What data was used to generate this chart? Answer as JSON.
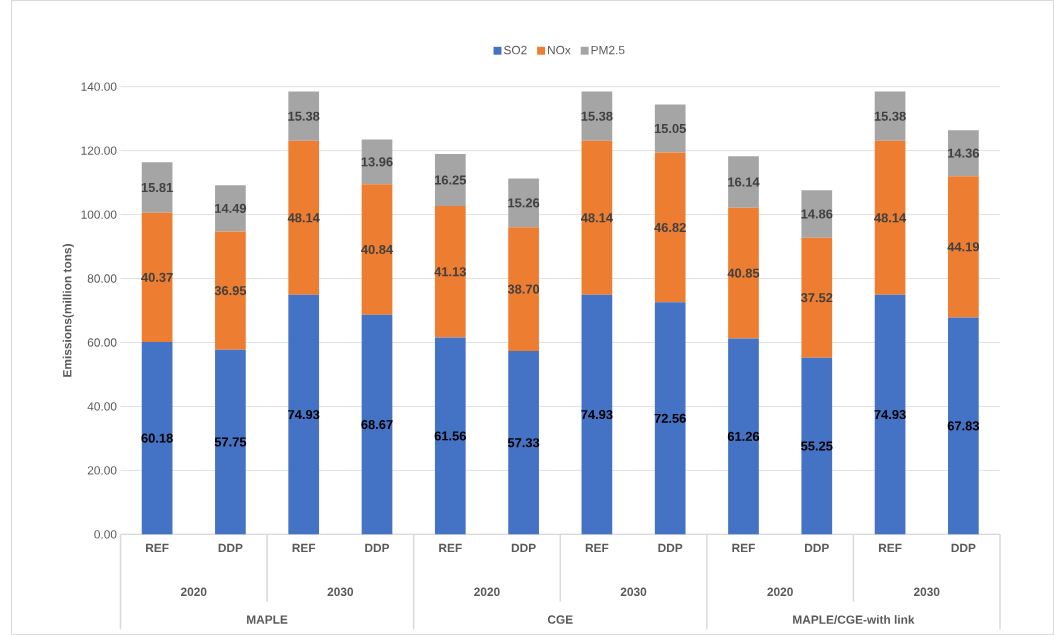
{
  "chart_data": {
    "type": "bar",
    "stacked": true,
    "ylabel": "Emissions(million tons)",
    "categories": [
      "REF",
      "DDP",
      "REF",
      "DDP",
      "REF",
      "DDP",
      "REF",
      "DDP",
      "REF",
      "DDP",
      "REF",
      "DDP"
    ],
    "series": [
      {
        "name": "SO2",
        "color": "#4472c4",
        "values": [
          60.18,
          57.75,
          74.93,
          68.67,
          61.56,
          57.33,
          74.93,
          72.56,
          61.26,
          55.25,
          74.93,
          67.83
        ],
        "value_labels": [
          "60.18",
          "57.75",
          "74.93",
          "68.67",
          "61.56",
          "57.33",
          "74.93",
          "72.56",
          "61.26",
          "55.25",
          "74.93",
          "67.83"
        ]
      },
      {
        "name": "NOx",
        "color": "#ed7d31",
        "values": [
          40.37,
          36.95,
          48.14,
          40.84,
          41.13,
          38.7,
          48.14,
          46.82,
          40.85,
          37.52,
          48.14,
          44.19
        ],
        "value_labels": [
          "40.37",
          "36.95",
          "48.14",
          "40.84",
          "41.13",
          "38.70",
          "48.14",
          "46.82",
          "40.85",
          "37.52",
          "48.14",
          "44.19"
        ]
      },
      {
        "name": "PM2.5",
        "color": "#a5a5a5",
        "values": [
          15.81,
          14.49,
          15.38,
          13.96,
          16.25,
          15.26,
          15.38,
          15.05,
          16.14,
          14.86,
          15.38,
          14.36
        ],
        "value_labels": [
          "15.81",
          "14.49",
          "15.38",
          "13.96",
          "16.25",
          "15.26",
          "15.38",
          "15.05",
          "16.14",
          "14.86",
          "15.38",
          "14.36"
        ]
      }
    ],
    "annotations": [
      "2020",
      "2030",
      "2020",
      "2030",
      "2020",
      "2030",
      "MAPLE",
      "CGE",
      "MAPLE/CGE-with link"
    ],
    "ylim": [
      0,
      140
    ],
    "yticks": [
      {
        "value": 0,
        "label": "0.00"
      },
      {
        "value": 20,
        "label": "20.00"
      },
      {
        "value": 40,
        "label": "40.00"
      },
      {
        "value": 60,
        "label": "60.00"
      },
      {
        "value": 80,
        "label": "80.00"
      },
      {
        "value": 100,
        "label": "100.00"
      },
      {
        "value": 120,
        "label": "120.00"
      },
      {
        "value": 140,
        "label": "140.00"
      }
    ],
    "grid": "y",
    "legend": "top"
  }
}
